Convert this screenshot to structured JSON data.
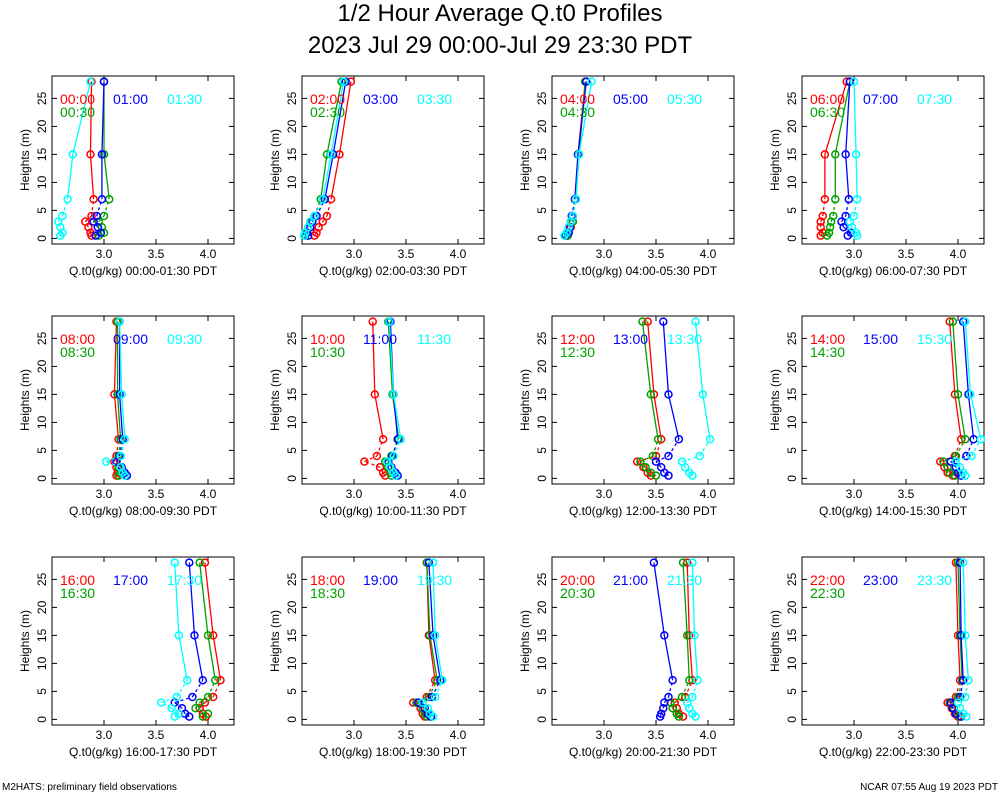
{
  "title": "1/2 Hour Average Q.t0 Profiles",
  "subtitle": "2023 Jul 29 00:00-Jul 29 23:30 PDT",
  "footer_left": "M2HATS: preliminary field observations",
  "footer_right": "NCAR 07:55 Aug 19 2023 PDT",
  "colors": {
    "red": "#ff0000",
    "green": "#00a000",
    "blue": "#0000ff",
    "cyan": "#00ffff"
  },
  "chart_data": [
    {
      "type": "line",
      "xlabel": "Q.t0(g/kg) 00:00-01:30 PDT",
      "ylabel": "Heights (m)",
      "xlim": [
        2.5,
        4.25
      ],
      "ylim": [
        -1,
        29
      ],
      "xticks": [
        3.0,
        3.5,
        4.0
      ],
      "yticks": [
        0,
        5,
        10,
        15,
        20,
        25
      ],
      "heights": [
        0.5,
        1,
        2,
        3,
        4,
        7,
        15,
        28
      ],
      "series": [
        {
          "name": "00:00",
          "color": "red",
          "values": [
            2.88,
            2.87,
            2.85,
            2.82,
            2.88,
            2.9,
            2.87,
            2.88
          ]
        },
        {
          "name": "00:30",
          "color": "green",
          "values": [
            2.95,
            3.0,
            2.98,
            2.95,
            3.0,
            3.05,
            3.0,
            3.0
          ]
        },
        {
          "name": "01:00",
          "color": "blue",
          "values": [
            2.92,
            2.97,
            2.94,
            2.9,
            2.93,
            2.98,
            2.98,
            3.0
          ]
        },
        {
          "name": "01:30",
          "color": "cyan",
          "values": [
            2.58,
            2.6,
            2.58,
            2.56,
            2.6,
            2.65,
            2.7,
            2.87
          ]
        }
      ]
    },
    {
      "type": "line",
      "xlabel": "Q.t0(g/kg) 02:00-03:30 PDT",
      "ylabel": "Heights (m)",
      "xlim": [
        2.5,
        4.25
      ],
      "ylim": [
        -1,
        29
      ],
      "xticks": [
        3.0,
        3.5,
        4.0
      ],
      "yticks": [
        0,
        5,
        10,
        15,
        20,
        25
      ],
      "heights": [
        0.5,
        1,
        2,
        3,
        4,
        7,
        15,
        28
      ],
      "series": [
        {
          "name": "02:00",
          "color": "red",
          "values": [
            2.62,
            2.64,
            2.66,
            2.7,
            2.74,
            2.78,
            2.86,
            2.97
          ]
        },
        {
          "name": "02:30",
          "color": "green",
          "values": [
            2.53,
            2.54,
            2.56,
            2.58,
            2.62,
            2.68,
            2.74,
            2.88
          ]
        },
        {
          "name": "03:00",
          "color": "blue",
          "values": [
            2.56,
            2.55,
            2.58,
            2.6,
            2.64,
            2.72,
            2.8,
            2.92
          ]
        },
        {
          "name": "03:30",
          "color": "cyan",
          "values": [
            2.52,
            2.53,
            2.56,
            2.58,
            2.62,
            2.7,
            2.78,
            2.9
          ]
        }
      ]
    },
    {
      "type": "line",
      "xlabel": "Q.t0(g/kg) 04:00-05:30 PDT",
      "ylabel": "Heights (m)",
      "xlim": [
        2.5,
        4.25
      ],
      "ylim": [
        -1,
        29
      ],
      "xticks": [
        3.0,
        3.5,
        4.0
      ],
      "yticks": [
        0,
        5,
        10,
        15,
        20,
        25
      ],
      "heights": [
        0.5,
        1,
        2,
        3,
        4,
        7,
        15,
        28
      ],
      "series": [
        {
          "name": "04:00",
          "color": "red",
          "values": [
            2.65,
            2.66,
            2.68,
            2.7,
            2.7,
            2.72,
            2.75,
            2.82
          ]
        },
        {
          "name": "04:30",
          "color": "green",
          "values": [
            2.65,
            2.66,
            2.67,
            2.7,
            2.7,
            2.73,
            2.76,
            2.82
          ]
        },
        {
          "name": "05:00",
          "color": "blue",
          "values": [
            2.63,
            2.66,
            2.67,
            2.68,
            2.69,
            2.72,
            2.75,
            2.83
          ]
        },
        {
          "name": "05:30",
          "color": "cyan",
          "values": [
            2.62,
            2.64,
            2.66,
            2.68,
            2.7,
            2.73,
            2.76,
            2.88
          ]
        }
      ]
    },
    {
      "type": "line",
      "xlabel": "Q.t0(g/kg) 06:00-07:30 PDT",
      "ylabel": "Heights (m)",
      "xlim": [
        2.5,
        4.25
      ],
      "ylim": [
        -1,
        29
      ],
      "xticks": [
        3.0,
        3.5,
        4.0
      ],
      "yticks": [
        0,
        5,
        10,
        15,
        20,
        25
      ],
      "heights": [
        0.5,
        1,
        2,
        3,
        4,
        7,
        15,
        28
      ],
      "series": [
        {
          "name": "06:00",
          "color": "red",
          "values": [
            2.68,
            2.7,
            2.68,
            2.68,
            2.7,
            2.72,
            2.72,
            2.93
          ]
        },
        {
          "name": "06:30",
          "color": "green",
          "values": [
            2.74,
            2.76,
            2.77,
            2.78,
            2.8,
            2.82,
            2.82,
            2.96
          ]
        },
        {
          "name": "07:00",
          "color": "blue",
          "values": [
            2.94,
            2.97,
            2.9,
            2.88,
            2.92,
            2.95,
            2.92,
            2.96
          ]
        },
        {
          "name": "07:30",
          "color": "cyan",
          "values": [
            3.03,
            3.02,
            2.98,
            2.96,
            3.0,
            3.03,
            3.02,
            3.0
          ]
        }
      ]
    },
    {
      "type": "line",
      "xlabel": "Q.t0(g/kg) 08:00-09:30 PDT",
      "ylabel": "Heights (m)",
      "xlim": [
        2.5,
        4.25
      ],
      "ylim": [
        -1,
        29
      ],
      "xticks": [
        3.0,
        3.5,
        4.0
      ],
      "yticks": [
        0,
        5,
        10,
        15,
        20,
        25
      ],
      "heights": [
        0.5,
        1,
        2,
        3,
        4,
        7,
        15,
        28
      ],
      "series": [
        {
          "name": "08:00",
          "color": "red",
          "values": [
            3.12,
            3.13,
            3.12,
            3.1,
            3.12,
            3.14,
            3.1,
            3.12
          ]
        },
        {
          "name": "08:30",
          "color": "green",
          "values": [
            3.14,
            3.16,
            3.14,
            3.12,
            3.14,
            3.16,
            3.13,
            3.13
          ]
        },
        {
          "name": "09:00",
          "color": "blue",
          "values": [
            3.22,
            3.2,
            3.17,
            3.12,
            3.15,
            3.18,
            3.15,
            3.15
          ]
        },
        {
          "name": "09:30",
          "color": "cyan",
          "values": [
            3.2,
            3.18,
            3.16,
            3.02,
            3.16,
            3.2,
            3.17,
            3.15
          ]
        }
      ]
    },
    {
      "type": "line",
      "xlabel": "Q.t0(g/kg) 10:00-11:30 PDT",
      "ylabel": "Heights (m)",
      "xlim": [
        2.5,
        4.25
      ],
      "ylim": [
        -1,
        29
      ],
      "xticks": [
        3.0,
        3.5,
        4.0
      ],
      "yticks": [
        0,
        5,
        10,
        15,
        20,
        25
      ],
      "heights": [
        0.5,
        1,
        2,
        3,
        4,
        7,
        15,
        28
      ],
      "series": [
        {
          "name": "10:00",
          "color": "red",
          "values": [
            3.3,
            3.28,
            3.25,
            3.1,
            3.22,
            3.28,
            3.2,
            3.18
          ]
        },
        {
          "name": "10:30",
          "color": "green",
          "values": [
            3.36,
            3.35,
            3.33,
            3.3,
            3.36,
            3.43,
            3.37,
            3.33
          ]
        },
        {
          "name": "11:00",
          "color": "blue",
          "values": [
            3.42,
            3.4,
            3.36,
            3.33,
            3.37,
            3.42,
            3.38,
            3.35
          ]
        },
        {
          "name": "11:30",
          "color": "cyan",
          "values": [
            3.4,
            3.38,
            3.35,
            3.32,
            3.38,
            3.45,
            3.38,
            3.34
          ]
        }
      ]
    },
    {
      "type": "line",
      "xlabel": "Q.t0(g/kg) 12:00-13:30 PDT",
      "ylabel": "Heights (m)",
      "xlim": [
        2.5,
        4.25
      ],
      "ylim": [
        -1,
        29
      ],
      "xticks": [
        3.0,
        3.5,
        4.0
      ],
      "yticks": [
        0,
        5,
        10,
        15,
        20,
        25
      ],
      "heights": [
        0.5,
        1,
        2,
        3,
        4,
        7,
        15,
        28
      ],
      "series": [
        {
          "name": "12:00",
          "color": "red",
          "values": [
            3.45,
            3.42,
            3.38,
            3.32,
            3.5,
            3.55,
            3.48,
            3.42
          ]
        },
        {
          "name": "12:30",
          "color": "green",
          "values": [
            3.5,
            3.45,
            3.4,
            3.35,
            3.47,
            3.52,
            3.45,
            3.37
          ]
        },
        {
          "name": "13:00",
          "color": "blue",
          "values": [
            3.62,
            3.58,
            3.55,
            3.5,
            3.62,
            3.72,
            3.62,
            3.57
          ]
        },
        {
          "name": "13:30",
          "color": "cyan",
          "values": [
            3.85,
            3.82,
            3.78,
            3.75,
            3.92,
            4.02,
            3.95,
            3.88
          ]
        }
      ]
    },
    {
      "type": "line",
      "xlabel": "Q.t0(g/kg) 14:00-15:30 PDT",
      "ylabel": "Heights (m)",
      "xlim": [
        2.5,
        4.25
      ],
      "ylim": [
        -1,
        29
      ],
      "xticks": [
        3.0,
        3.5,
        4.0
      ],
      "yticks": [
        0,
        5,
        10,
        15,
        20,
        25
      ],
      "heights": [
        0.5,
        1,
        2,
        3,
        4,
        7,
        15,
        28
      ],
      "series": [
        {
          "name": "14:00",
          "color": "red",
          "values": [
            3.95,
            3.9,
            3.87,
            3.83,
            3.97,
            4.03,
            3.97,
            3.92
          ]
        },
        {
          "name": "14:30",
          "color": "green",
          "values": [
            3.97,
            3.92,
            3.9,
            3.86,
            3.98,
            4.07,
            4.0,
            3.95
          ]
        },
        {
          "name": "15:00",
          "color": "blue",
          "values": [
            4.03,
            4.0,
            3.98,
            3.93,
            4.08,
            4.15,
            4.1,
            4.05
          ]
        },
        {
          "name": "15:30",
          "color": "cyan",
          "values": [
            4.07,
            4.05,
            4.02,
            3.98,
            4.13,
            4.22,
            4.12,
            4.07
          ]
        }
      ]
    },
    {
      "type": "line",
      "xlabel": "Q.t0(g/kg) 16:00-17:30 PDT",
      "ylabel": "Heights (m)",
      "xlim": [
        2.5,
        4.25
      ],
      "ylim": [
        -1,
        29
      ],
      "xticks": [
        3.0,
        3.5,
        4.0
      ],
      "yticks": [
        0,
        5,
        10,
        15,
        20,
        25
      ],
      "heights": [
        0.5,
        1,
        2,
        3,
        4,
        7,
        15,
        28
      ],
      "series": [
        {
          "name": "16:00",
          "color": "red",
          "values": [
            3.98,
            3.95,
            3.92,
            3.97,
            4.05,
            4.12,
            4.05,
            3.97
          ]
        },
        {
          "name": "16:30",
          "color": "green",
          "values": [
            3.95,
            4.0,
            3.88,
            3.92,
            4.0,
            4.07,
            4.0,
            3.92
          ]
        },
        {
          "name": "17:00",
          "color": "blue",
          "values": [
            3.82,
            3.78,
            3.75,
            3.68,
            3.85,
            3.95,
            3.87,
            3.82
          ]
        },
        {
          "name": "17:30",
          "color": "cyan",
          "values": [
            3.68,
            3.72,
            3.65,
            3.55,
            3.7,
            3.8,
            3.72,
            3.68
          ]
        }
      ]
    },
    {
      "type": "line",
      "xlabel": "Q.t0(g/kg) 18:00-19:30 PDT",
      "ylabel": "Heights (m)",
      "xlim": [
        2.5,
        4.25
      ],
      "ylim": [
        -1,
        29
      ],
      "xticks": [
        3.0,
        3.5,
        4.0
      ],
      "yticks": [
        0,
        5,
        10,
        15,
        20,
        25
      ],
      "heights": [
        0.5,
        1,
        2,
        3,
        4,
        7,
        15,
        28
      ],
      "series": [
        {
          "name": "18:00",
          "color": "red",
          "values": [
            3.68,
            3.66,
            3.64,
            3.57,
            3.7,
            3.78,
            3.72,
            3.7
          ]
        },
        {
          "name": "18:30",
          "color": "green",
          "values": [
            3.7,
            3.68,
            3.66,
            3.6,
            3.72,
            3.8,
            3.73,
            3.7
          ]
        },
        {
          "name": "19:00",
          "color": "blue",
          "values": [
            3.74,
            3.71,
            3.68,
            3.62,
            3.75,
            3.83,
            3.76,
            3.72
          ]
        },
        {
          "name": "19:30",
          "color": "cyan",
          "values": [
            3.76,
            3.73,
            3.71,
            3.66,
            3.78,
            3.85,
            3.78,
            3.76
          ]
        }
      ]
    },
    {
      "type": "line",
      "xlabel": "Q.t0(g/kg) 20:00-21:30 PDT",
      "ylabel": "Heights (m)",
      "xlim": [
        2.5,
        4.25
      ],
      "ylim": [
        -1,
        29
      ],
      "xticks": [
        3.0,
        3.5,
        4.0
      ],
      "yticks": [
        0,
        5,
        10,
        15,
        20,
        25
      ],
      "heights": [
        0.5,
        1,
        2,
        3,
        4,
        7,
        15,
        28
      ],
      "series": [
        {
          "name": "20:00",
          "color": "red",
          "values": [
            3.76,
            3.72,
            3.7,
            3.68,
            3.78,
            3.85,
            3.82,
            3.8
          ]
        },
        {
          "name": "20:30",
          "color": "green",
          "values": [
            3.72,
            3.7,
            3.66,
            3.64,
            3.75,
            3.82,
            3.8,
            3.76
          ]
        },
        {
          "name": "21:00",
          "color": "blue",
          "values": [
            3.54,
            3.55,
            3.57,
            3.58,
            3.62,
            3.66,
            3.58,
            3.48
          ]
        },
        {
          "name": "21:30",
          "color": "cyan",
          "values": [
            3.88,
            3.85,
            3.82,
            3.8,
            3.85,
            3.9,
            3.87,
            3.85
          ]
        }
      ]
    },
    {
      "type": "line",
      "xlabel": "Q.t0(g/kg) 22:00-23:30 PDT",
      "ylabel": "Heights (m)",
      "xlim": [
        2.5,
        4.25
      ],
      "ylim": [
        -1,
        29
      ],
      "xticks": [
        3.0,
        3.5,
        4.0
      ],
      "yticks": [
        0,
        5,
        10,
        15,
        20,
        25
      ],
      "heights": [
        0.5,
        1,
        2,
        3,
        4,
        7,
        15,
        28
      ],
      "series": [
        {
          "name": "22:00",
          "color": "red",
          "values": [
            4.0,
            3.97,
            3.94,
            3.9,
            3.98,
            4.02,
            4.0,
            3.98
          ]
        },
        {
          "name": "22:30",
          "color": "green",
          "values": [
            4.02,
            3.99,
            3.96,
            3.92,
            4.0,
            4.04,
            4.02,
            4.0
          ]
        },
        {
          "name": "23:00",
          "color": "blue",
          "values": [
            4.03,
            3.98,
            3.95,
            3.93,
            4.02,
            4.05,
            4.03,
            4.02
          ]
        },
        {
          "name": "23:30",
          "color": "cyan",
          "values": [
            4.08,
            4.05,
            4.02,
            4.0,
            4.07,
            4.1,
            4.07,
            4.05
          ]
        }
      ]
    }
  ]
}
